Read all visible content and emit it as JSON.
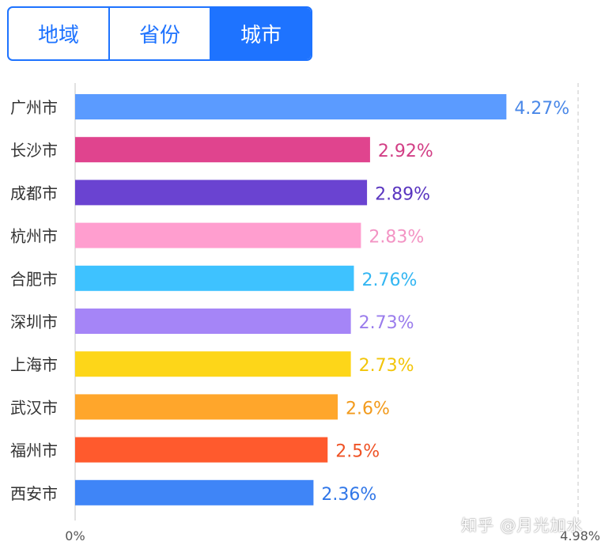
{
  "tabs": [
    {
      "label": "地域",
      "active": false
    },
    {
      "label": "省份",
      "active": false
    },
    {
      "label": "城市",
      "active": true
    }
  ],
  "watermark": "知乎 @月光加水",
  "chart_data": {
    "type": "bar",
    "orientation": "horizontal",
    "categories": [
      "广州市",
      "长沙市",
      "成都市",
      "杭州市",
      "合肥市",
      "深圳市",
      "上海市",
      "武汉市",
      "福州市",
      "西安市"
    ],
    "values": [
      4.27,
      2.92,
      2.89,
      2.83,
      2.76,
      2.73,
      2.73,
      2.6,
      2.5,
      2.36
    ],
    "value_labels": [
      "4.27%",
      "2.92%",
      "2.89%",
      "2.83%",
      "2.76%",
      "2.73%",
      "2.73%",
      "2.6%",
      "2.5%",
      "2.36%"
    ],
    "colors": [
      "#5b9bff",
      "#e0448e",
      "#6a43d1",
      "#ff9ecf",
      "#3ec2ff",
      "#a585f7",
      "#fdd619",
      "#ffa62b",
      "#ff5a2d",
      "#3f85f7"
    ],
    "label_colors": [
      "#4a88e8",
      "#d23e85",
      "#5a36c0",
      "#f394c4",
      "#33b6f2",
      "#9a7cec",
      "#f2c50a",
      "#f29a1c",
      "#ef5326",
      "#3177e8"
    ],
    "xlim": [
      0,
      4.98
    ],
    "xtick_labels": [
      "0%",
      "4.98%"
    ],
    "grid": false
  }
}
